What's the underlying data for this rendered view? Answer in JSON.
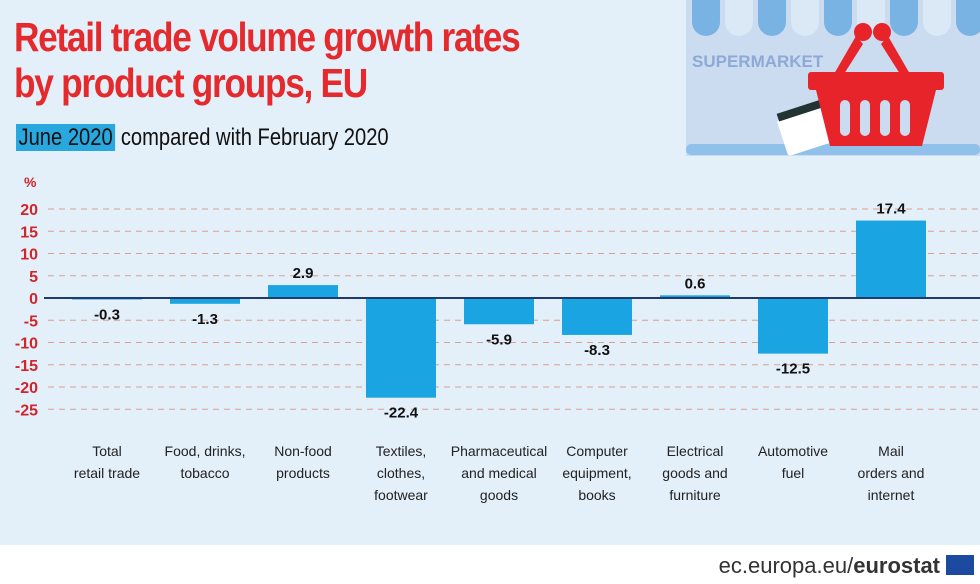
{
  "header": {
    "title_line1": "Retail trade volume growth rates",
    "title_line2": "by product groups, EU",
    "subtitle_highlight": "June 2020",
    "subtitle_rest": " compared with February 2020"
  },
  "illustration": {
    "sign_text": "SUPERMARKET"
  },
  "footer": {
    "source_plain": "ec.europa.eu/",
    "source_bold": "eurostat"
  },
  "colors": {
    "title": "#e52a2d",
    "bar": "#1aa4e1",
    "axis_labels": "#d0262b",
    "grid": "#d9a08f"
  },
  "chart_data": {
    "type": "bar",
    "ylabel": "%",
    "ylim": [
      -25,
      20
    ],
    "yticks": [
      20,
      15,
      10,
      5,
      0,
      -5,
      -10,
      -15,
      -20,
      -25
    ],
    "grid": true,
    "categories": [
      [
        "Total",
        "retail trade"
      ],
      [
        "Food, drinks,",
        "tobacco"
      ],
      [
        "Non-food",
        "products"
      ],
      [
        "Textiles,",
        "clothes,",
        "footwear"
      ],
      [
        "Pharmaceutical",
        "and medical",
        "goods"
      ],
      [
        "Computer",
        "equipment,",
        "books"
      ],
      [
        "Electrical",
        "goods and",
        "furniture"
      ],
      [
        "Automotive",
        "fuel"
      ],
      [
        "Mail",
        "orders and",
        "internet"
      ]
    ],
    "values": [
      -0.3,
      -1.3,
      2.9,
      -22.4,
      -5.9,
      -8.3,
      0.6,
      -12.5,
      17.4
    ],
    "value_labels": [
      "-0.3",
      "-1.3",
      "2.9",
      "-22.4",
      "-5.9",
      "-8.3",
      "0.6",
      "-12.5",
      "17.4"
    ]
  }
}
